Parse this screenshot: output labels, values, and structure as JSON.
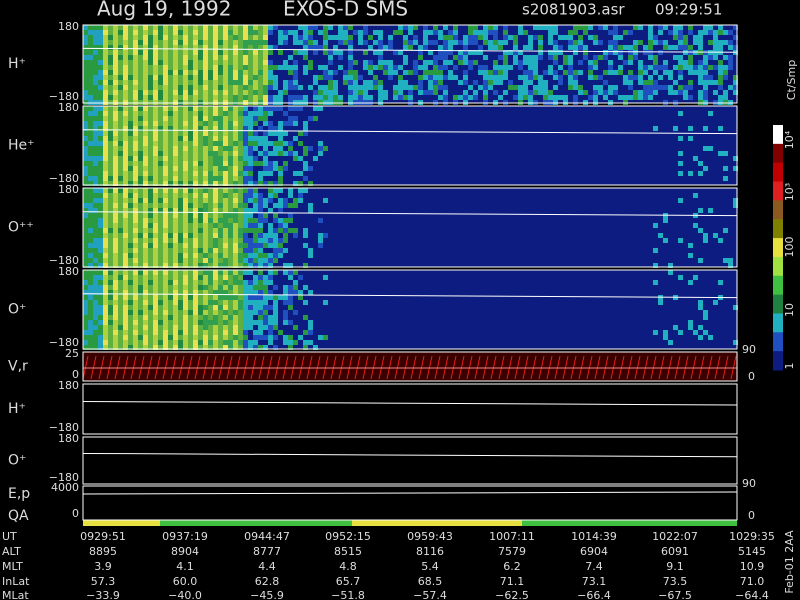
{
  "header": {
    "date": "Aug 19, 1992",
    "instrument": "EXOS-D SMS",
    "file": "s2081903.asr",
    "time": "09:29:51"
  },
  "panels": [
    {
      "labels": [
        "H⁺"
      ],
      "ticks": [
        "180",
        "−180"
      ]
    },
    {
      "labels": [
        "He⁺"
      ],
      "ticks": [
        "180",
        "−180"
      ]
    },
    {
      "labels": [
        "O⁺⁺"
      ],
      "ticks": [
        "180",
        "−180"
      ]
    },
    {
      "labels": [
        "O⁺"
      ],
      "ticks": [
        "180",
        "−180"
      ]
    },
    {
      "labels": [
        "V,r"
      ],
      "ticks": [
        "25",
        "0"
      ],
      "right": [
        "90",
        "0"
      ]
    },
    {
      "labels": [
        "H⁺"
      ],
      "ticks": [
        "180",
        "−180"
      ]
    },
    {
      "labels": [
        "O⁺"
      ],
      "ticks": [
        "180",
        "−180"
      ]
    },
    {
      "labels": [
        "E,p",
        "QA"
      ],
      "ticks": [
        "4000",
        "0"
      ],
      "right": [
        "90",
        "0"
      ]
    }
  ],
  "colorbar": {
    "unit": "Ct/Smp",
    "labels": [
      "10⁴",
      "10³",
      "100",
      "10",
      "1"
    ]
  },
  "table": {
    "rows": [
      {
        "label": "UT",
        "cells": [
          "0929:51",
          "0937:19",
          "0944:47",
          "0952:15",
          "0959:43",
          "1007:11",
          "1014:39",
          "1022:07",
          "1029:35"
        ]
      },
      {
        "label": "ALT",
        "cells": [
          "8895",
          "8904",
          "8777",
          "8515",
          "8116",
          "7579",
          "6904",
          "6091",
          "5145"
        ]
      },
      {
        "label": "MLT",
        "cells": [
          "3.9",
          "4.1",
          "4.4",
          "4.8",
          "5.4",
          "6.2",
          "7.4",
          "9.1",
          "10.9"
        ]
      },
      {
        "label": "InLat",
        "cells": [
          "57.3",
          "60.0",
          "62.8",
          "65.7",
          "68.5",
          "71.1",
          "73.1",
          "73.5",
          "71.0"
        ]
      },
      {
        "label": "MLat",
        "cells": [
          "−33.9",
          "−40.0",
          "−45.9",
          "−51.8",
          "−57.4",
          "−62.5",
          "−66.4",
          "−67.5",
          "−64.4"
        ]
      }
    ]
  },
  "footer": "Feb-01 2AA"
}
